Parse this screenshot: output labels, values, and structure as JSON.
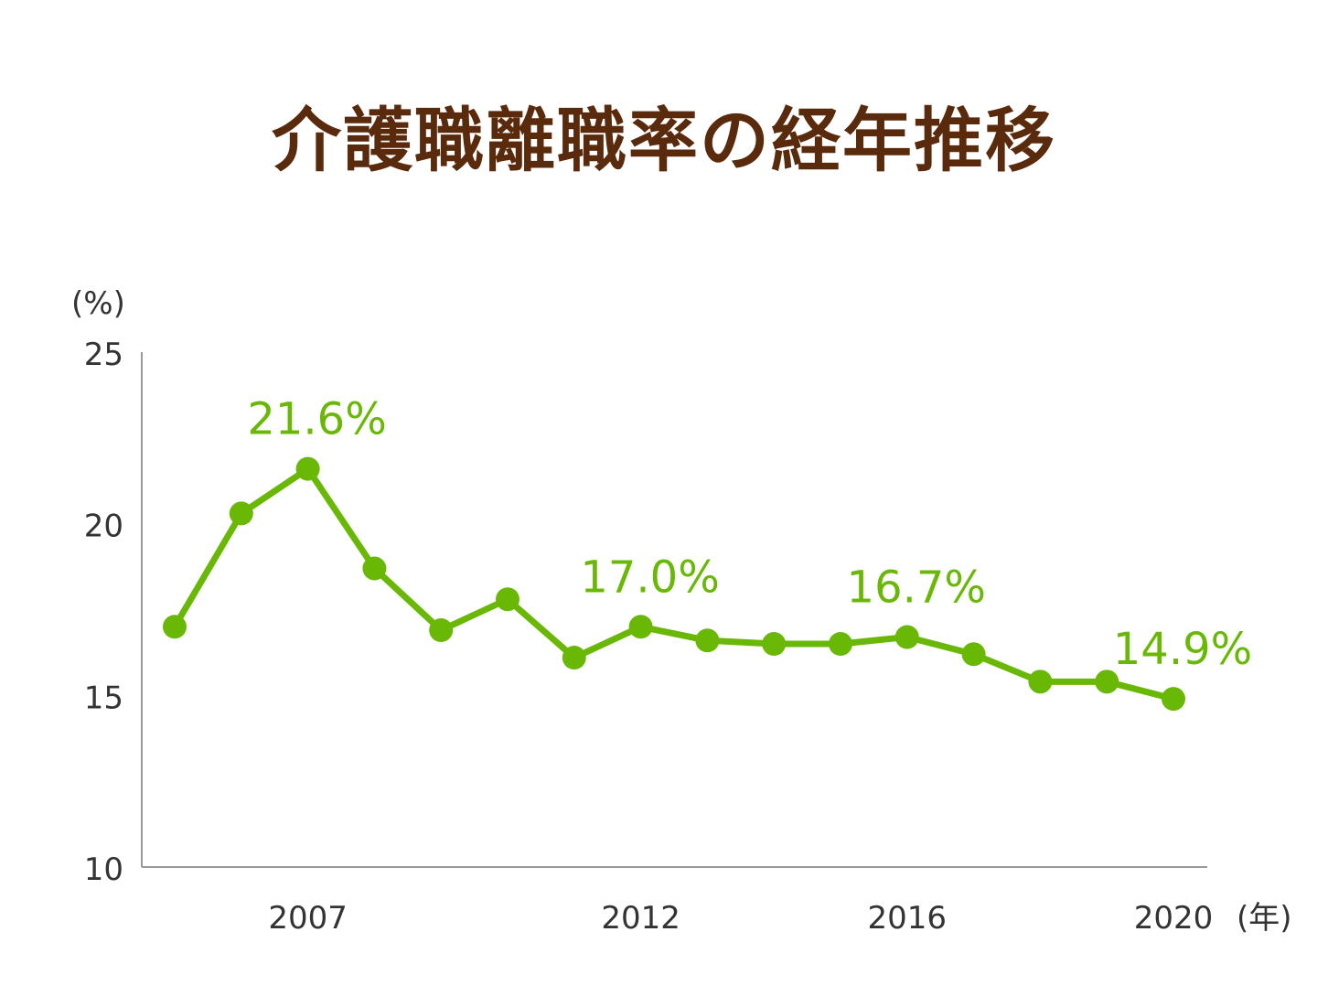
{
  "title": "介護職離職率の経年推移",
  "chart_data": {
    "type": "line",
    "title": "介護職離職率の経年推移",
    "y_unit": "(%)",
    "x_unit": "(年)",
    "x": [
      2005,
      2006,
      2007,
      2008,
      2009,
      2010,
      2011,
      2012,
      2013,
      2014,
      2015,
      2016,
      2017,
      2018,
      2019,
      2020
    ],
    "series": [
      {
        "values": [
          17.0,
          20.3,
          21.6,
          18.7,
          16.9,
          17.8,
          16.1,
          17.0,
          16.6,
          16.5,
          16.5,
          16.7,
          16.2,
          15.4,
          15.4,
          14.9
        ]
      }
    ],
    "ylim": [
      10,
      25
    ],
    "y_ticks": [
      "25",
      "20",
      "15",
      "10"
    ],
    "x_ticks": [
      "2007",
      "2012",
      "2016",
      "2020"
    ],
    "annotations": [
      {
        "year": 2007,
        "label": "21.6%"
      },
      {
        "year": 2012,
        "label": "17.0%"
      },
      {
        "year": 2016,
        "label": "16.7%"
      },
      {
        "year": 2020,
        "label": "14.9%"
      }
    ],
    "colors": {
      "line": "#6ab806",
      "title": "#5a2a0c",
      "axis": "#999999",
      "text": "#333333"
    }
  }
}
